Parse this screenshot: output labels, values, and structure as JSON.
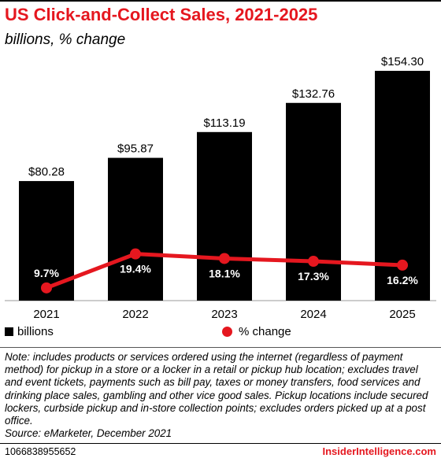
{
  "title": "US Click-and-Collect Sales, 2021-2025",
  "subtitle": "billions, % change",
  "legend": {
    "bars": "billions",
    "line": "% change"
  },
  "note": "Note: includes products or services ordered using the internet (regardless of payment method) for pickup in a store or a locker in a retail or pickup hub location; excludes travel and event tickets, payments such as bill pay, taxes or money transfers, food services and drinking place sales, gambling and other vice good sales. Pickup locations include secured lockers, curbside pickup and in-store collection points; excludes orders picked up at a post office.",
  "source": "Source: eMarketer, December 2021",
  "chart_id": "1066838955652",
  "brand": "InsiderIntelligence.com",
  "colors": {
    "bar": "#000000",
    "line": "#e5171f",
    "title": "#e5171f"
  },
  "chart_data": {
    "type": "bar",
    "categories": [
      "2021",
      "2022",
      "2023",
      "2024",
      "2025"
    ],
    "series": [
      {
        "name": "billions",
        "type": "bar",
        "values": [
          80.28,
          95.87,
          113.19,
          132.76,
          154.3
        ],
        "labels": [
          "$80.28",
          "$95.87",
          "$113.19",
          "$132.76",
          "$154.30"
        ]
      },
      {
        "name": "% change",
        "type": "line",
        "values": [
          9.7,
          19.4,
          18.1,
          17.3,
          16.2
        ],
        "labels": [
          "9.7%",
          "19.4%",
          "18.1%",
          "17.3%",
          "16.2%"
        ]
      }
    ],
    "grid": false,
    "legend_position": "bottom-left"
  }
}
